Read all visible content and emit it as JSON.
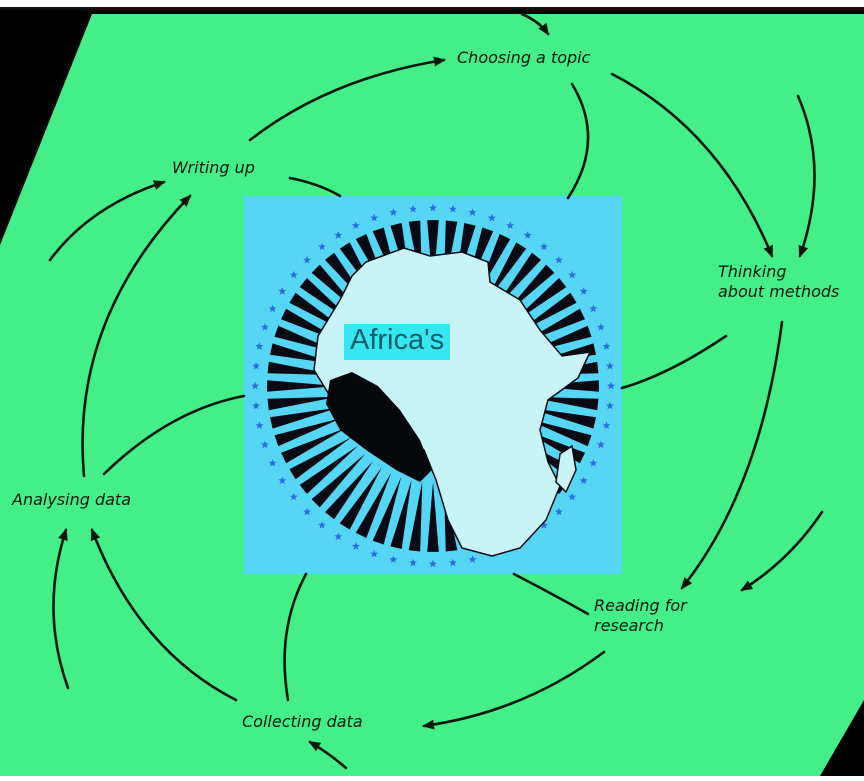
{
  "diagram": {
    "stages": {
      "choosing_topic": "Choosing a topic",
      "thinking_methods": "Thinking\nabout methods",
      "reading_research": "Reading for\nresearch",
      "collecting_data": "Collecting data",
      "analysing_data": "Analysing data",
      "writing_up": "Writing up"
    },
    "center_label": "Africa's"
  },
  "colors": {
    "page_background": "#44ee88",
    "outer_background": "#000000",
    "arrow_color": "#0a1a0a",
    "emblem_background": "#55d6f5",
    "star_color": "#2a6fe0",
    "continent_color": "#c8f4f8",
    "ray_color": "#0a0a14",
    "label_highlight": "#36e7f2"
  }
}
